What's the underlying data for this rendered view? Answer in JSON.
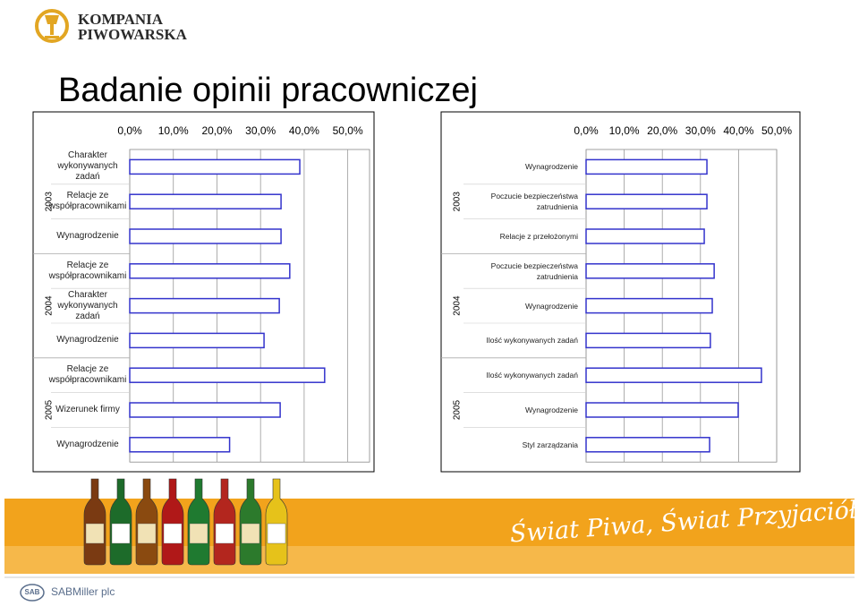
{
  "logo": {
    "line1": "KOMPANIA",
    "line2": "PIWOWARSKA"
  },
  "title": "Badanie opinii pracowniczej",
  "chart_data": [
    {
      "type": "bar",
      "orientation": "horizontal",
      "color": "#3333cc",
      "xlim": [
        0,
        55
      ],
      "xticks": [
        {
          "value": 0,
          "label": "0,0%"
        },
        {
          "value": 10,
          "label": "10,0%"
        },
        {
          "value": 20,
          "label": "20,0%"
        },
        {
          "value": 30,
          "label": "30,0%"
        },
        {
          "value": 40,
          "label": "40,0%"
        },
        {
          "value": 50,
          "label": "50,0%"
        }
      ],
      "grid": true,
      "groups": [
        {
          "name": "2003",
          "categories": [
            "Charakter wykonywanych zadań",
            "Relacje ze współpracownikami",
            "Wynagrodzenie"
          ],
          "values": [
            39.0,
            34.7,
            34.7
          ]
        },
        {
          "name": "2004",
          "categories": [
            "Relacje ze współpracownikami",
            "Charakter wykonywanych zadań",
            "Wynagrodzenie"
          ],
          "values": [
            36.7,
            34.3,
            30.8
          ]
        },
        {
          "name": "2005",
          "categories": [
            "Relacje ze współpracownikami",
            "Wizerunek firmy",
            "Wynagrodzenie"
          ],
          "values": [
            44.7,
            34.5,
            22.9
          ]
        }
      ]
    },
    {
      "type": "bar",
      "orientation": "horizontal",
      "color": "#3333cc",
      "xlim": [
        0,
        50
      ],
      "xticks": [
        {
          "value": 0,
          "label": "0,0%"
        },
        {
          "value": 10,
          "label": "10,0%"
        },
        {
          "value": 20,
          "label": "20,0%"
        },
        {
          "value": 30,
          "label": "30,0%"
        },
        {
          "value": 40,
          "label": "40,0%"
        },
        {
          "value": 50,
          "label": "50,0%"
        }
      ],
      "grid": true,
      "groups": [
        {
          "name": "2003",
          "categories": [
            "Wynagrodzenie",
            "Poczucie bezpieczeństwa zatrudnienia",
            "Relacje z przełożonymi"
          ],
          "values": [
            31.7,
            31.7,
            31.0
          ]
        },
        {
          "name": "2004",
          "categories": [
            "Poczucie bezpieczeństwa zatrudnienia",
            "Wynagrodzenie",
            "Ilość wykonywanych zadań"
          ],
          "values": [
            33.6,
            33.1,
            32.6
          ]
        },
        {
          "name": "2005",
          "categories": [
            "Ilość wykonywanych zadań",
            "Wynagrodzenie",
            "Styl zarządzania"
          ],
          "values": [
            46.0,
            39.9,
            32.4
          ]
        }
      ]
    }
  ],
  "banner": {
    "slogan": "Świat Piwa, Świat Przyjaciół"
  },
  "footer": {
    "logo": "SAB",
    "company": "SABMiller plc"
  }
}
